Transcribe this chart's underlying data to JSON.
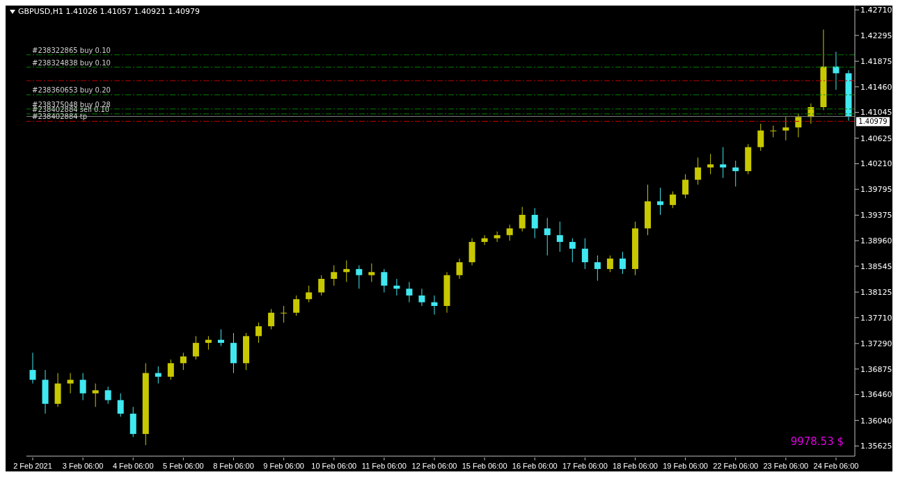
{
  "chart_data": {
    "type": "candlestick",
    "title": "GBPUSD,H1  1.41026 1.41057 1.40921 1.40979",
    "categories": [
      "2 Feb 2021",
      null,
      null,
      null,
      "3 Feb 06:00",
      null,
      null,
      null,
      "4 Feb 06:00",
      null,
      null,
      null,
      "5 Feb 06:00",
      null,
      null,
      null,
      "8 Feb 06:00",
      null,
      null,
      null,
      "9 Feb 06:00",
      null,
      null,
      null,
      "10 Feb 06:00",
      null,
      null,
      null,
      "11 Feb 06:00",
      null,
      null,
      null,
      "12 Feb 06:00",
      null,
      null,
      null,
      "15 Feb 06:00",
      null,
      null,
      null,
      "16 Feb 06:00",
      null,
      null,
      null,
      "17 Feb 06:00",
      null,
      null,
      null,
      "18 Feb 06:00",
      null,
      null,
      null,
      "19 Feb 06:00",
      null,
      null,
      null,
      "22 Feb 06:00",
      null,
      null,
      null,
      "23 Feb 06:00",
      null,
      null,
      null,
      "24 Feb 06:00",
      null
    ],
    "ohlc": [
      [
        1.3686,
        1.3714,
        1.3664,
        1.367
      ],
      [
        1.367,
        1.3686,
        1.3615,
        1.3631
      ],
      [
        1.3631,
        1.3681,
        1.3626,
        1.3664
      ],
      [
        1.3664,
        1.3681,
        1.3648,
        1.367
      ],
      [
        1.367,
        1.3681,
        1.3637,
        1.3648
      ],
      [
        1.3648,
        1.3664,
        1.3626,
        1.3653
      ],
      [
        1.3653,
        1.3659,
        1.3631,
        1.3637
      ],
      [
        1.3637,
        1.3648,
        1.361,
        1.3615
      ],
      [
        1.3615,
        1.3626,
        1.3577,
        1.3582
      ],
      [
        1.3582,
        1.3697,
        1.3564,
        1.3681
      ],
      [
        1.3681,
        1.3692,
        1.3664,
        1.3675
      ],
      [
        1.3675,
        1.3703,
        1.367,
        1.3697
      ],
      [
        1.3697,
        1.3714,
        1.3686,
        1.3708
      ],
      [
        1.3708,
        1.3741,
        1.3703,
        1.373
      ],
      [
        1.373,
        1.3741,
        1.3719,
        1.3735
      ],
      [
        1.3735,
        1.3752,
        1.3725,
        1.373
      ],
      [
        1.373,
        1.3746,
        1.3681,
        1.3697
      ],
      [
        1.3697,
        1.3746,
        1.3686,
        1.3741
      ],
      [
        1.3741,
        1.3763,
        1.373,
        1.3757
      ],
      [
        1.3757,
        1.3785,
        1.3752,
        1.3779
      ],
      [
        1.3779,
        1.379,
        1.3763,
        1.3779
      ],
      [
        1.3779,
        1.3807,
        1.3774,
        1.3801
      ],
      [
        1.3801,
        1.3823,
        1.3796,
        1.3812
      ],
      [
        1.3812,
        1.384,
        1.3807,
        1.3834
      ],
      [
        1.3834,
        1.3856,
        1.3823,
        1.3845
      ],
      [
        1.3845,
        1.3864,
        1.3829,
        1.385
      ],
      [
        1.385,
        1.3856,
        1.3818,
        1.384
      ],
      [
        1.384,
        1.3859,
        1.3829,
        1.3845
      ],
      [
        1.3845,
        1.385,
        1.3812,
        1.3823
      ],
      [
        1.3823,
        1.3834,
        1.3807,
        1.3818
      ],
      [
        1.3818,
        1.3829,
        1.3796,
        1.3807
      ],
      [
        1.3807,
        1.3818,
        1.379,
        1.3796
      ],
      [
        1.3796,
        1.3807,
        1.3776,
        1.379
      ],
      [
        1.379,
        1.3845,
        1.3779,
        1.384
      ],
      [
        1.384,
        1.3867,
        1.3834,
        1.3861
      ],
      [
        1.3861,
        1.39,
        1.3856,
        1.3894
      ],
      [
        1.3894,
        1.3905,
        1.3889,
        1.39
      ],
      [
        1.39,
        1.3911,
        1.3894,
        1.3905
      ],
      [
        1.3905,
        1.3922,
        1.3896,
        1.3916
      ],
      [
        1.3916,
        1.3951,
        1.3911,
        1.3938
      ],
      [
        1.3938,
        1.3949,
        1.39,
        1.3916
      ],
      [
        1.3916,
        1.3933,
        1.3872,
        1.3905
      ],
      [
        1.3905,
        1.3927,
        1.3878,
        1.3894
      ],
      [
        1.3894,
        1.39,
        1.3861,
        1.3883
      ],
      [
        1.3883,
        1.39,
        1.385,
        1.3861
      ],
      [
        1.3861,
        1.3872,
        1.3831,
        1.385
      ],
      [
        1.385,
        1.3872,
        1.3845,
        1.3867
      ],
      [
        1.3867,
        1.3878,
        1.3842,
        1.385
      ],
      [
        1.385,
        1.3927,
        1.384,
        1.3916
      ],
      [
        1.3916,
        1.3987,
        1.3905,
        1.396
      ],
      [
        1.396,
        1.3982,
        1.3938,
        1.3954
      ],
      [
        1.3954,
        1.3976,
        1.3949,
        1.3971
      ],
      [
        1.3971,
        1.4004,
        1.3965,
        1.3995
      ],
      [
        1.3995,
        1.4031,
        1.3987,
        1.4015
      ],
      [
        1.4015,
        1.4037,
        1.4004,
        1.402
      ],
      [
        1.402,
        1.4048,
        1.3998,
        1.4015
      ],
      [
        1.4015,
        1.4026,
        1.3984,
        1.4009
      ],
      [
        1.4009,
        1.4053,
        1.4004,
        1.4048
      ],
      [
        1.4048,
        1.4086,
        1.4042,
        1.4075
      ],
      [
        1.4075,
        1.4083,
        1.4064,
        1.4075
      ],
      [
        1.4075,
        1.4097,
        1.4059,
        1.408
      ],
      [
        1.408,
        1.4102,
        1.4064,
        1.4097
      ],
      [
        1.4097,
        1.4119,
        1.4086,
        1.4113
      ],
      [
        1.4113,
        1.4239,
        1.4108,
        1.4179
      ],
      [
        1.4179,
        1.4203,
        1.4141,
        1.4168
      ],
      [
        1.4168,
        1.4173,
        1.4091,
        1.4098
      ]
    ],
    "colors": [
      "#40e8f0",
      "#40e8f0",
      "#c8c800",
      "#c8c800",
      "#40e8f0",
      "#c8c800",
      "#40e8f0",
      "#40e8f0",
      "#40e8f0",
      "#c8c800",
      "#40e8f0",
      "#c8c800",
      "#c8c800",
      "#c8c800",
      "#c8c800",
      "#40e8f0",
      "#40e8f0",
      "#c8c800",
      "#c8c800",
      "#c8c800",
      "#c8c800",
      "#c8c800",
      "#c8c800",
      "#c8c800",
      "#c8c800",
      "#c8c800",
      "#40e8f0",
      "#c8c800",
      "#40e8f0",
      "#40e8f0",
      "#40e8f0",
      "#40e8f0",
      "#40e8f0",
      "#c8c800",
      "#c8c800",
      "#c8c800",
      "#c8c800",
      "#c8c800",
      "#c8c800",
      "#c8c800",
      "#40e8f0",
      "#40e8f0",
      "#40e8f0",
      "#40e8f0",
      "#40e8f0",
      "#40e8f0",
      "#c8c800",
      "#40e8f0",
      "#c8c800",
      "#c8c800",
      "#40e8f0",
      "#c8c800",
      "#c8c800",
      "#c8c800",
      "#c8c800",
      "#40e8f0",
      "#40e8f0",
      "#c8c800",
      "#c8c800",
      "#c8c800",
      "#c8c800",
      "#c8c800",
      "#c8c800",
      "#c8c800",
      "#40e8f0",
      "#40e8f0"
    ],
    "ylim": [
      1.3546,
      1.4278
    ],
    "yticks": [
      {
        "value": 1.35625,
        "label": "1.35625"
      },
      {
        "value": 1.3604,
        "label": "1.36040"
      },
      {
        "value": 1.3646,
        "label": "1.36460"
      },
      {
        "value": 1.36875,
        "label": "1.36875"
      },
      {
        "value": 1.3729,
        "label": "1.37290"
      },
      {
        "value": 1.3771,
        "label": "1.37710"
      },
      {
        "value": 1.38125,
        "label": "1.38125"
      },
      {
        "value": 1.38545,
        "label": "1.38545"
      },
      {
        "value": 1.3896,
        "label": "1.38960"
      },
      {
        "value": 1.39375,
        "label": "1.39375"
      },
      {
        "value": 1.39795,
        "label": "1.39795"
      },
      {
        "value": 1.4021,
        "label": "1.40210"
      },
      {
        "value": 1.40625,
        "label": "1.40625"
      },
      {
        "value": 1.41045,
        "label": "1.41045"
      },
      {
        "value": 1.4146,
        "label": "1.41460"
      },
      {
        "value": 1.41875,
        "label": "1.41875"
      },
      {
        "value": 1.42295,
        "label": "1.42295"
      },
      {
        "value": 1.4271,
        "label": "1.42710"
      }
    ],
    "ref_lines": [
      {
        "axis": "y",
        "value": 1.4198,
        "label": "#238322865 buy 0.10",
        "color": "#008000",
        "line_style": "dashed"
      },
      {
        "axis": "y",
        "value": 1.4178,
        "label": "#238324838 buy 0.10",
        "color": "#008000",
        "line_style": "dashed"
      },
      {
        "axis": "y",
        "value": 1.4156,
        "color": "#c00000",
        "line_style": "dashed"
      },
      {
        "axis": "y",
        "value": 1.4133,
        "label": "#238360653 buy 0.20",
        "color": "#008000",
        "line_style": "dashed"
      },
      {
        "axis": "y",
        "value": 1.411,
        "label": "#238375048 buy 0.28",
        "color": "#008000",
        "line_style": "dashed"
      },
      {
        "axis": "y",
        "value": 1.4102,
        "label": "#238402884 sell 0.10",
        "color": "#008000",
        "line_style": "dashed"
      },
      {
        "axis": "y",
        "value": 1.40979,
        "label": "1.40979",
        "color": "#808080",
        "line_style": "solid"
      },
      {
        "axis": "y",
        "value": 1.409,
        "label": "#238402884 tp",
        "color": "#c00000",
        "line_style": "dashed"
      }
    ],
    "annotations": [
      "9978.53 $"
    ],
    "grid": false,
    "legend": false
  }
}
